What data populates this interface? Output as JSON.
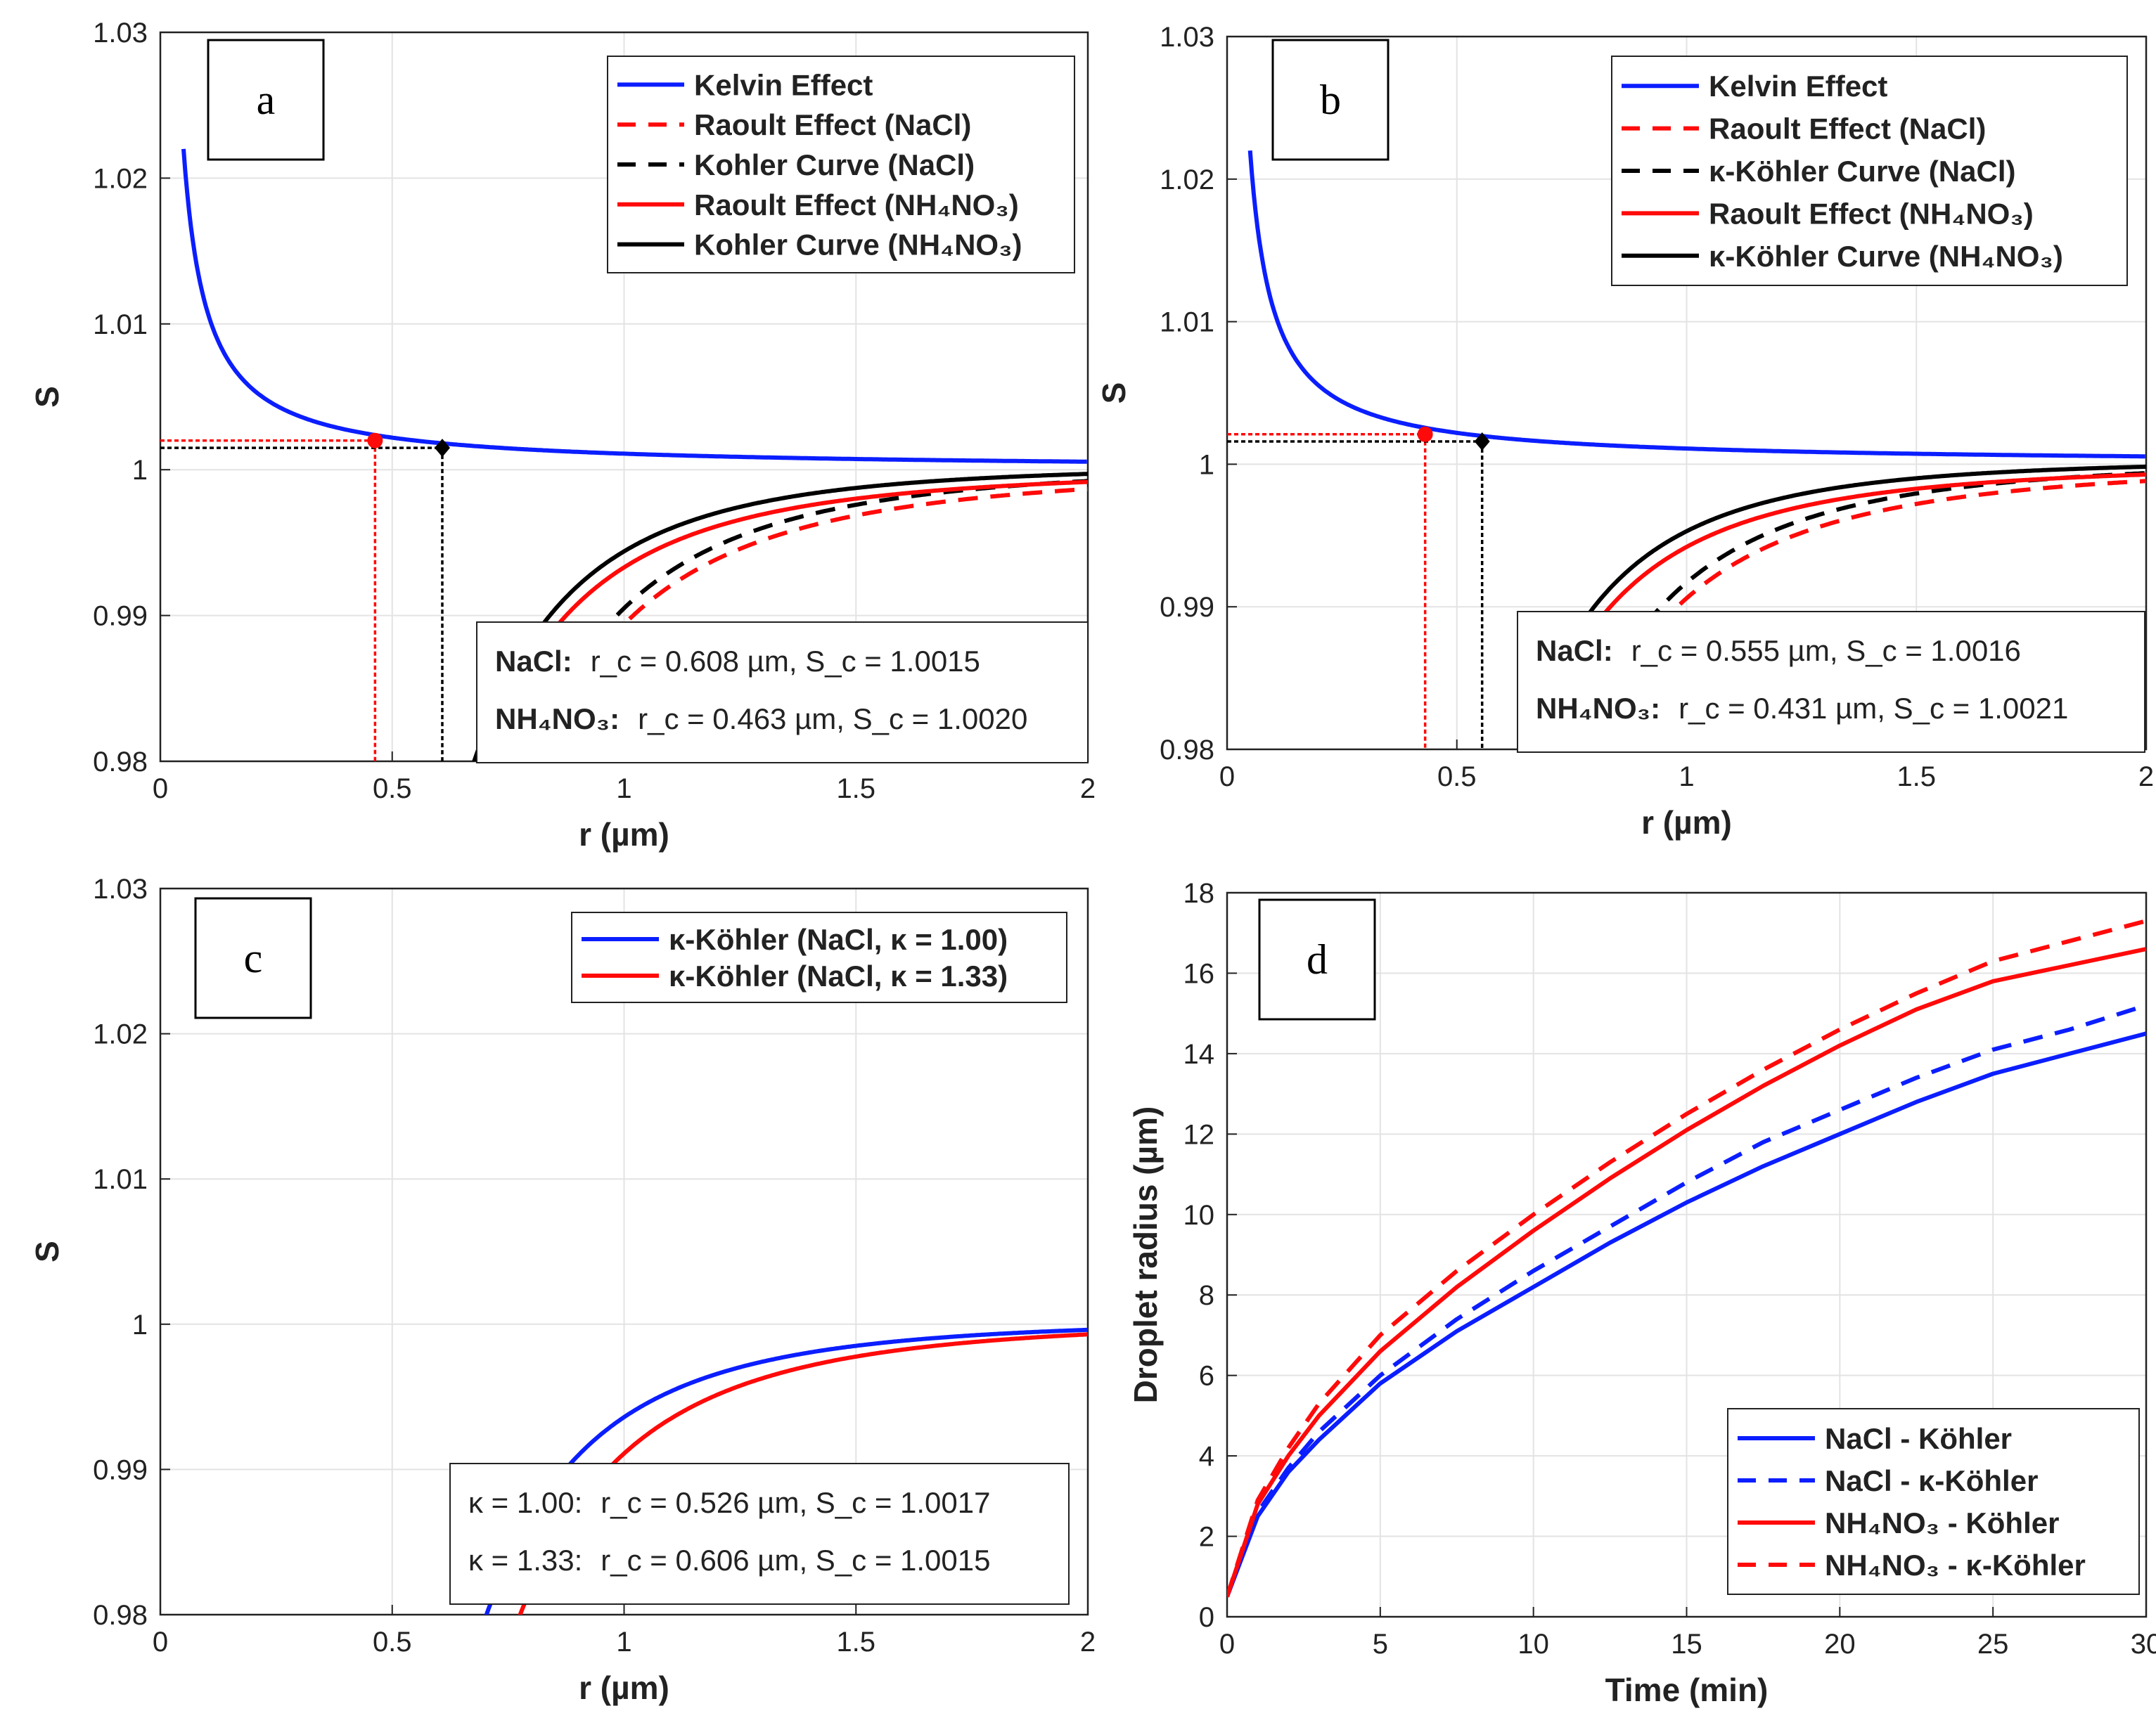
{
  "colors": {
    "blue": "#0b1eff",
    "red": "#ff0a0a",
    "black": "#000000",
    "grid": "#e3e3e3"
  },
  "chart_data": [
    {
      "panel_label": "a",
      "type": "line",
      "xlabel": "r (µm)",
      "ylabel": "S",
      "xlim": [
        0,
        2
      ],
      "ylim": [
        0.98,
        1.03
      ],
      "xticks": [
        "0",
        "0.5",
        "1",
        "1.5",
        "2"
      ],
      "yticks": [
        "0.98",
        "0.99",
        "1",
        "1.01",
        "1.02",
        "1.03"
      ],
      "series": [
        {
          "name": "Kelvin Effect",
          "curve": "kelvin",
          "color": "blue",
          "dash": false
        },
        {
          "name": "Raoult Effect (NaCl)",
          "curve": "raoult",
          "color": "red",
          "dash": true,
          "b": 0.0106
        },
        {
          "name": "Kohler Curve (NaCl)",
          "curve": "kohler",
          "color": "black",
          "dash": true,
          "b": 0.0106
        },
        {
          "name": "Raoult Effect (NH₄NO₃)",
          "curve": "raoult",
          "color": "red",
          "dash": false,
          "b": 0.0067
        },
        {
          "name": "Kohler Curve (NH₄NO₃)",
          "curve": "kohler",
          "color": "black",
          "dash": false,
          "b": 0.0067
        }
      ],
      "critical_points": [
        {
          "r": 0.463,
          "S": 1.002,
          "color": "red"
        },
        {
          "r": 0.608,
          "S": 1.0015,
          "color": "black"
        }
      ],
      "annotations": [
        {
          "label": "NaCl:",
          "text": "r_c = 0.608 µm,  S_c = 1.0015"
        },
        {
          "label": "NH₄NO₃:",
          "text": "r_c = 0.463 µm,  S_c = 1.0020"
        }
      ]
    },
    {
      "panel_label": "b",
      "type": "line",
      "xlabel": "r (µm)",
      "ylabel": "S",
      "xlim": [
        0,
        2
      ],
      "ylim": [
        0.98,
        1.03
      ],
      "xticks": [
        "0",
        "0.5",
        "1",
        "1.5",
        "2"
      ],
      "yticks": [
        "0.98",
        "0.99",
        "1",
        "1.01",
        "1.02",
        "1.03"
      ],
      "series": [
        {
          "name": "Kelvin Effect",
          "curve": "kelvin",
          "color": "blue",
          "dash": false
        },
        {
          "name": "Raoult Effect (NaCl)",
          "curve": "raoult",
          "color": "red",
          "dash": true,
          "b": 0.0094
        },
        {
          "name": "κ-Köhler Curve (NaCl)",
          "curve": "kohler",
          "color": "black",
          "dash": true,
          "b": 0.0094
        },
        {
          "name": "Raoult Effect (NH₄NO₃)",
          "curve": "raoult",
          "color": "red",
          "dash": false,
          "b": 0.0058
        },
        {
          "name": "κ-Köhler Curve (NH₄NO₃)",
          "curve": "kohler",
          "color": "black",
          "dash": false,
          "b": 0.0058
        }
      ],
      "critical_points": [
        {
          "r": 0.431,
          "S": 1.0021,
          "color": "red"
        },
        {
          "r": 0.555,
          "S": 1.0016,
          "color": "black"
        }
      ],
      "annotations": [
        {
          "label": "NaCl:",
          "text": "r_c = 0.555 µm,  S_c = 1.0016"
        },
        {
          "label": "NH₄NO₃:",
          "text": "r_c = 0.431 µm,  S_c = 1.0021"
        }
      ]
    },
    {
      "panel_label": "c",
      "type": "line",
      "xlabel": "r (µm)",
      "ylabel": "S",
      "xlim": [
        0,
        2
      ],
      "ylim": [
        0.98,
        1.03
      ],
      "xticks": [
        "0",
        "0.5",
        "1",
        "1.5",
        "2"
      ],
      "yticks": [
        "0.98",
        "0.99",
        "1",
        "1.01",
        "1.02",
        "1.03"
      ],
      "series": [
        {
          "name": "κ-Köhler (NaCl, κ = 1.00)",
          "curve": "kohler",
          "color": "blue",
          "dash": false,
          "b": 0.0075
        },
        {
          "name": "κ-Köhler (NaCl, κ = 1.33)",
          "curve": "kohler",
          "color": "red",
          "dash": false,
          "b": 0.01
        }
      ],
      "annotations": [
        {
          "label": "κ = 1.00:",
          "text": "r_c = 0.526 µm,  S_c = 1.0017"
        },
        {
          "label": "κ = 1.33:",
          "text": "r_c = 0.606 µm,  S_c = 1.0015"
        }
      ]
    },
    {
      "panel_label": "d",
      "type": "line",
      "xlabel": "Time (min)",
      "ylabel": "Droplet radius (µm)",
      "xlim": [
        0,
        30
      ],
      "ylim": [
        0,
        18
      ],
      "xticks": [
        "0",
        "5",
        "10",
        "15",
        "20",
        "25",
        "30"
      ],
      "yticks": [
        "0",
        "2",
        "4",
        "6",
        "8",
        "10",
        "12",
        "14",
        "16",
        "18"
      ],
      "x": [
        0,
        1,
        2,
        3,
        5,
        7.5,
        10,
        12.5,
        15,
        17.5,
        20,
        22.5,
        25,
        27.5,
        30
      ],
      "series": [
        {
          "name": "NaCl - Köhler",
          "color": "blue",
          "dash": false,
          "values": [
            0.5,
            2.5,
            3.6,
            4.4,
            5.8,
            7.1,
            8.2,
            9.3,
            10.3,
            11.2,
            12.0,
            12.8,
            13.5,
            14.0,
            14.5
          ]
        },
        {
          "name": "NaCl - κ-Köhler",
          "color": "blue",
          "dash": true,
          "values": [
            0.5,
            2.6,
            3.7,
            4.6,
            6.0,
            7.4,
            8.6,
            9.7,
            10.8,
            11.8,
            12.6,
            13.4,
            14.1,
            14.6,
            15.2
          ]
        },
        {
          "name": "NH₄NO₃ - Köhler",
          "color": "red",
          "dash": false,
          "values": [
            0.5,
            2.8,
            4.0,
            5.0,
            6.6,
            8.2,
            9.6,
            10.9,
            12.1,
            13.2,
            14.2,
            15.1,
            15.8,
            16.2,
            16.6
          ]
        },
        {
          "name": "NH₄NO₃ - κ-Köhler",
          "color": "red",
          "dash": true,
          "values": [
            0.5,
            2.9,
            4.2,
            5.3,
            7.0,
            8.6,
            10.0,
            11.3,
            12.5,
            13.6,
            14.6,
            15.5,
            16.3,
            16.8,
            17.3
          ]
        }
      ]
    }
  ]
}
